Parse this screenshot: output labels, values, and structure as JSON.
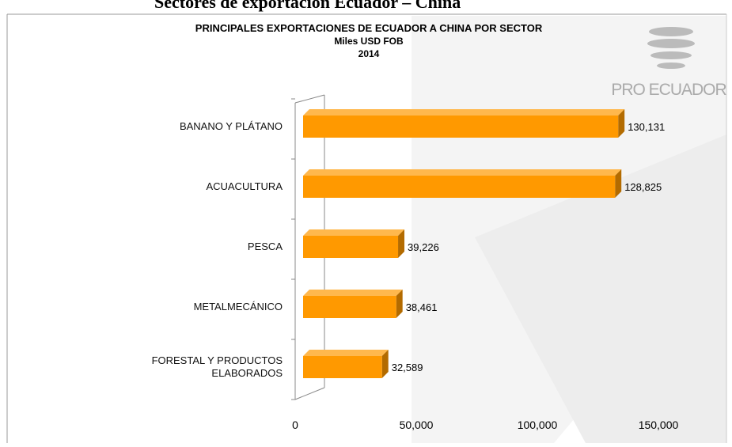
{
  "page_heading": "Sectores de exportación Ecuador – China",
  "logo_text": "PRO ECUADOR",
  "chart_data": {
    "type": "hbar",
    "title": "PRINCIPALES EXPORTACIONES DE ECUADOR A CHINA POR SECTOR",
    "subtitle": [
      "Miles USD FOB",
      "2014"
    ],
    "categories": [
      "BANANO Y PLÁTANO",
      "ACUACULTURA",
      "PESCA",
      "METALMECÁNICO",
      "FORESTAL Y PRODUCTOS ELABORADOS"
    ],
    "values": [
      130131,
      128825,
      39226,
      38461,
      32589
    ],
    "value_labels": [
      "130,131",
      "128,825",
      "39,226",
      "38,461",
      "32,589"
    ],
    "color": "#ff9900",
    "xlim": [
      0,
      150000
    ],
    "xticks": [
      0,
      {
        "value": 50000,
        "label": "50,000"
      },
      {
        "value": 100000,
        "label": "100,000"
      },
      {
        "value": 150000,
        "label": "150,000"
      }
    ],
    "grid": false
  }
}
